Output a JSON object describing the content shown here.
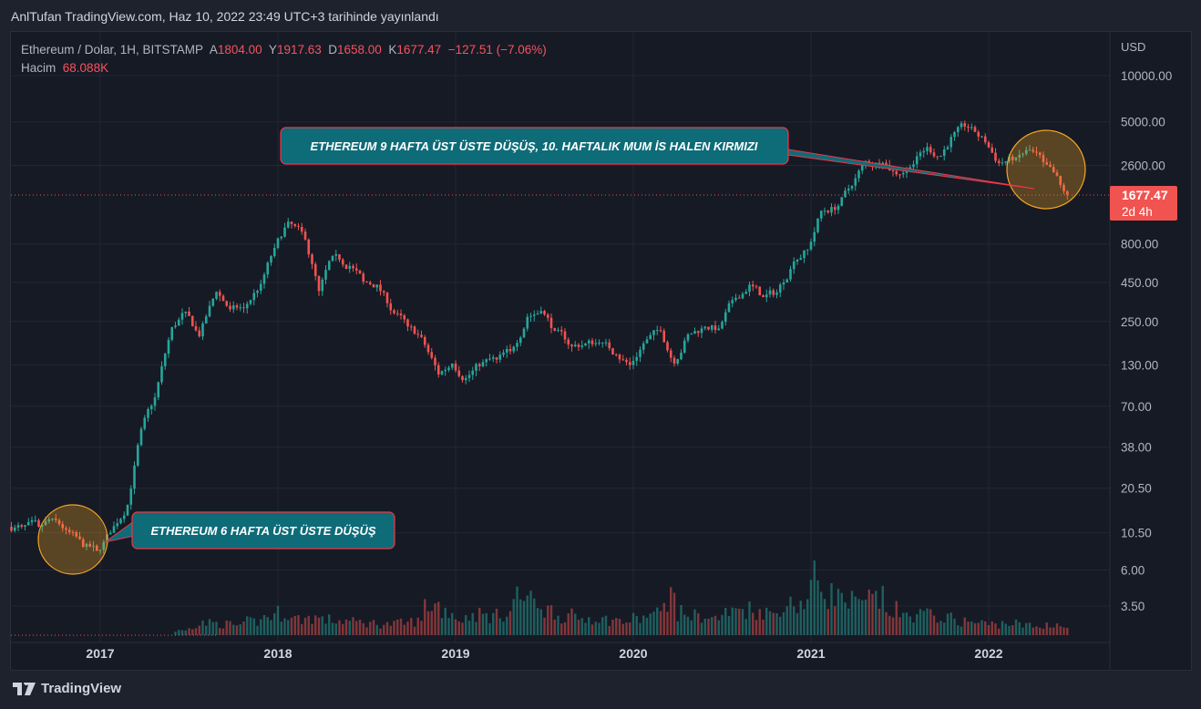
{
  "published": "AnlTufan TradingView.com, Haz 10, 2022 23:49 UTC+3 tarihinde yayınlandı",
  "legend": {
    "symbol": "Ethereum / Dolar, 1H, BITSTAMP",
    "open_label": "A",
    "open": "1804.00",
    "high_label": "Y",
    "high": "1917.63",
    "low_label": "D",
    "low": "1658.00",
    "close_label": "K",
    "close": "1677.47",
    "change": "−127.51 (−7.06%)",
    "volume_label": "Hacim",
    "volume": "68.088K"
  },
  "footer": {
    "brand": "TradingView"
  },
  "colors": {
    "up": "#26a69a",
    "down": "#ef5350",
    "callout_fill": "#0e6b78",
    "callout_border": "#f23645",
    "circle": "#f5a623",
    "price_tag": "#f05350"
  },
  "chart_data": {
    "type": "candlestick",
    "scale": "log",
    "currency": "USD",
    "y_ticks": [
      "10000.00",
      "5000.00",
      "2600.00",
      "800.00",
      "450.00",
      "250.00",
      "130.00",
      "70.00",
      "38.00",
      "20.50",
      "10.50",
      "6.00",
      "3.50"
    ],
    "y_tick_values": [
      10000,
      5000,
      2600,
      800,
      450,
      250,
      130,
      70,
      38,
      20.5,
      10.5,
      6,
      3.5
    ],
    "x_ticks": [
      "2017",
      "2018",
      "2019",
      "2020",
      "2021",
      "2022"
    ],
    "x_range": [
      2016.5,
      2022.44
    ],
    "current_price": {
      "label": "1677.47",
      "countdown": "2d 4h",
      "value": 1677.47
    },
    "monthly_closes": {
      "start": "2016-07",
      "values": [
        11.5,
        11.5,
        13,
        11,
        8.5,
        8,
        10.5,
        16,
        50,
        80,
        230,
        290,
        200,
        390,
        300,
        305,
        440,
        755,
        1120,
        855,
        395,
        670,
        575,
        455,
        435,
        283,
        232,
        198,
        113,
        133,
        107,
        136,
        141,
        160,
        268,
        293,
        218,
        172,
        180,
        182,
        152,
        130,
        180,
        218,
        133,
        206,
        231,
        225,
        345,
        435,
        360,
        386,
        615,
        737,
        1315,
        1418,
        1918,
        2772,
        2706,
        2275,
        2535,
        3430,
        3000,
        4288,
        4630,
        3680,
        2688,
        2920,
        3282,
        2730,
        1940,
        1677
      ]
    },
    "monthly_volume_index": [
      0,
      0,
      0,
      0,
      0,
      0,
      0,
      0,
      0,
      0,
      0,
      8,
      18,
      22,
      20,
      18,
      25,
      35,
      40,
      30,
      32,
      28,
      26,
      24,
      22,
      20,
      22,
      25,
      55,
      45,
      30,
      38,
      35,
      40,
      70,
      60,
      45,
      35,
      30,
      32,
      28,
      25,
      30,
      38,
      70,
      40,
      35,
      30,
      40,
      48,
      45,
      40,
      55,
      60,
      100,
      75,
      60,
      55,
      65,
      45,
      35,
      38,
      35,
      30,
      25,
      22,
      20,
      22,
      18,
      15,
      20,
      14
    ],
    "annotations": [
      {
        "text": "ETHEREUM 9 HAFTA ÜST ÜSTE DÜŞÜŞ, 10. HAFTALIK MUM İS HALEN KIRMIZI"
      },
      {
        "text": "ETHEREUM 6 HAFTA ÜST ÜSTE DÜŞÜŞ"
      }
    ]
  }
}
